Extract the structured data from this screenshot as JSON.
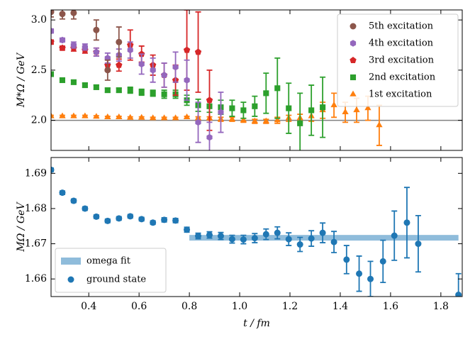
{
  "chart_data": [
    {
      "type": "errorbar",
      "ylabel": "M*Ω / GeV",
      "xlim": [
        0.25,
        1.885
      ],
      "ylim": [
        1.7,
        3.1
      ],
      "yticks": [
        {
          "value": 2.0,
          "label": "2.0"
        },
        {
          "value": 2.5,
          "label": "2.5"
        },
        {
          "value": 3.0,
          "label": "3.0"
        }
      ],
      "reference_line": 2.0,
      "legend": "upper right",
      "series": [
        {
          "name": "5th excitation",
          "color": "#8c564b",
          "marker": "circle",
          "x": [
            0.25,
            0.295,
            0.34,
            0.43,
            0.475,
            0.52
          ],
          "values": [
            3.08,
            3.06,
            3.07,
            2.9,
            2.5,
            2.78
          ],
          "errors": [
            0.05,
            0.05,
            0.06,
            0.1,
            0.1,
            0.15
          ]
        },
        {
          "name": "4th excitation",
          "color": "#9467bd",
          "marker": "hexagon",
          "x": [
            0.25,
            0.295,
            0.34,
            0.385,
            0.43,
            0.475,
            0.52,
            0.565,
            0.61,
            0.655,
            0.7,
            0.745,
            0.79,
            0.835,
            0.88,
            0.925
          ],
          "values": [
            2.89,
            2.8,
            2.75,
            2.73,
            2.68,
            2.62,
            2.65,
            2.7,
            2.56,
            2.5,
            2.45,
            2.53,
            2.4,
            1.98,
            1.83,
            2.08
          ],
          "errors": [
            0.02,
            0.02,
            0.03,
            0.03,
            0.04,
            0.05,
            0.06,
            0.08,
            0.1,
            0.12,
            0.12,
            0.15,
            0.2,
            0.2,
            0.15,
            0.2
          ]
        },
        {
          "name": "3rd excitation",
          "color": "#d62728",
          "marker": "pentagon",
          "x": [
            0.25,
            0.295,
            0.34,
            0.385,
            0.43,
            0.475,
            0.52,
            0.565,
            0.61,
            0.655,
            0.7,
            0.745,
            0.79,
            0.835,
            0.88
          ],
          "values": [
            2.78,
            2.72,
            2.72,
            2.7,
            2.68,
            2.55,
            2.55,
            2.75,
            2.66,
            2.55,
            2.45,
            2.4,
            2.7,
            2.68,
            2.2
          ],
          "errors": [
            0.02,
            0.02,
            0.03,
            0.03,
            0.04,
            0.06,
            0.06,
            0.15,
            0.08,
            0.1,
            0.12,
            0.15,
            0.4,
            0.4,
            0.3
          ]
        },
        {
          "name": "2nd excitation",
          "color": "#2ca02c",
          "marker": "square",
          "x": [
            0.25,
            0.295,
            0.34,
            0.385,
            0.43,
            0.475,
            0.52,
            0.565,
            0.61,
            0.655,
            0.7,
            0.745,
            0.79,
            0.835,
            0.88,
            0.925,
            0.97,
            1.015,
            1.06,
            1.105,
            1.15,
            1.195,
            1.24,
            1.285,
            1.33
          ],
          "values": [
            2.46,
            2.4,
            2.38,
            2.35,
            2.33,
            2.3,
            2.3,
            2.3,
            2.28,
            2.27,
            2.26,
            2.26,
            2.2,
            2.15,
            2.14,
            2.13,
            2.12,
            2.1,
            2.14,
            2.27,
            2.32,
            2.12,
            1.97,
            2.1,
            2.13
          ],
          "errors": [
            0.02,
            0.02,
            0.02,
            0.02,
            0.02,
            0.02,
            0.02,
            0.03,
            0.03,
            0.03,
            0.04,
            0.04,
            0.05,
            0.06,
            0.06,
            0.07,
            0.08,
            0.08,
            0.1,
            0.2,
            0.3,
            0.25,
            0.3,
            0.25,
            0.3
          ]
        },
        {
          "name": "1st excitation",
          "color": "#ff7f0e",
          "marker": "triangle",
          "x": [
            0.25,
            0.295,
            0.34,
            0.385,
            0.43,
            0.475,
            0.52,
            0.565,
            0.61,
            0.655,
            0.7,
            0.745,
            0.79,
            0.835,
            0.88,
            0.925,
            0.97,
            1.015,
            1.06,
            1.105,
            1.15,
            1.195,
            1.24,
            1.285,
            1.33,
            1.375,
            1.42,
            1.465,
            1.51,
            1.555
          ],
          "values": [
            2.04,
            2.04,
            2.04,
            2.04,
            2.035,
            2.03,
            2.03,
            2.025,
            2.025,
            2.02,
            2.02,
            2.02,
            2.03,
            2.02,
            2.02,
            2.01,
            2.01,
            2.0,
            1.99,
            1.99,
            2.0,
            2.02,
            2.02,
            2.04,
            2.1,
            2.15,
            2.08,
            2.1,
            2.12,
            1.95
          ],
          "errors": [
            0.01,
            0.01,
            0.01,
            0.01,
            0.01,
            0.01,
            0.01,
            0.01,
            0.01,
            0.01,
            0.01,
            0.01,
            0.01,
            0.015,
            0.015,
            0.02,
            0.02,
            0.02,
            0.02,
            0.02,
            0.03,
            0.03,
            0.04,
            0.05,
            0.08,
            0.12,
            0.1,
            0.12,
            0.12,
            0.2
          ]
        }
      ]
    },
    {
      "type": "errorbar",
      "ylabel": "MΩ / GeV",
      "xlabel": "t / fm",
      "xlim": [
        0.25,
        1.885
      ],
      "ylim": [
        1.655,
        1.6945
      ],
      "xticks": [
        0.4,
        0.6,
        0.8,
        {
          "value": 1.0,
          "label": "1.0"
        },
        1.2,
        1.4,
        1.6,
        1.8
      ],
      "yticks": [
        1.66,
        1.67,
        1.68,
        1.69
      ],
      "legend": "lower left",
      "fit": {
        "name": "omega fit",
        "color": "#8fbcdb",
        "xrange": [
          0.8,
          1.87
        ],
        "value": 1.6717,
        "error": 0.0008
      },
      "series": [
        {
          "name": "ground state",
          "color": "#1f77b4",
          "marker": "circle",
          "x": [
            0.25,
            0.295,
            0.34,
            0.385,
            0.43,
            0.475,
            0.52,
            0.565,
            0.61,
            0.655,
            0.7,
            0.745,
            0.79,
            0.835,
            0.88,
            0.925,
            0.97,
            1.015,
            1.06,
            1.105,
            1.15,
            1.195,
            1.24,
            1.285,
            1.33,
            1.375,
            1.425,
            1.475,
            1.52,
            1.57,
            1.615,
            1.665,
            1.71,
            1.87
          ],
          "values": [
            1.691,
            1.6845,
            1.6822,
            1.68,
            1.6777,
            1.6765,
            1.6772,
            1.6778,
            1.677,
            1.676,
            1.6768,
            1.6766,
            1.674,
            1.6722,
            1.6725,
            1.6722,
            1.6713,
            1.6712,
            1.6716,
            1.6727,
            1.6731,
            1.6713,
            1.6698,
            1.6715,
            1.6731,
            1.6705,
            1.6655,
            1.6615,
            1.66,
            1.665,
            1.6723,
            1.676,
            1.67,
            1.6555
          ],
          "errors": [
            0.0005,
            0.0005,
            0.0005,
            0.0005,
            0.0005,
            0.0005,
            0.0005,
            0.0005,
            0.0005,
            0.0005,
            0.0006,
            0.0006,
            0.0007,
            0.0008,
            0.0009,
            0.001,
            0.0011,
            0.0012,
            0.0013,
            0.0015,
            0.0017,
            0.0018,
            0.002,
            0.0022,
            0.0028,
            0.003,
            0.004,
            0.005,
            0.005,
            0.006,
            0.007,
            0.01,
            0.008,
            0.006
          ]
        }
      ]
    }
  ]
}
